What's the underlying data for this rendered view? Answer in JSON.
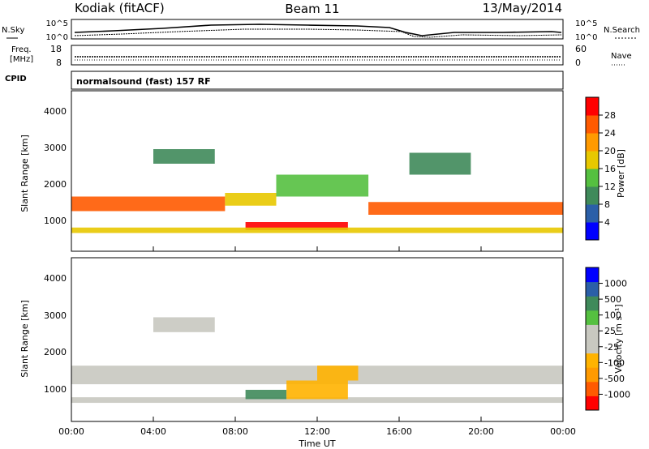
{
  "header": {
    "station": "Kodiak (fitACF)",
    "beam": "Beam 11",
    "date": "13/May/2014"
  },
  "noise_panel": {
    "left_label": "N.Sky",
    "right_label": "N.Search",
    "left_ticks": [
      "10^5",
      "10^0"
    ],
    "right_ticks": [
      "10^5",
      "10^0"
    ]
  },
  "freq_panel": {
    "left_label_1": "Freq.",
    "left_label_2": "[MHz]",
    "left_ticks": [
      "18",
      "8"
    ],
    "right_label": "Nave",
    "right_ticks": [
      "60",
      "0"
    ]
  },
  "cpid": {
    "label": "CPID",
    "value": "normalsound (fast) 157 RF"
  },
  "colors": {
    "power": [
      "#0000ff",
      "#2b5fa8",
      "#3f8a5a",
      "#55c040",
      "#e8c800",
      "#ff9a00",
      "#ff5a00",
      "#ff0000"
    ],
    "velocity": [
      "#ff0000",
      "#ff5a00",
      "#ff9a00",
      "#ffb300",
      "#c8c8c0",
      "#c8c8c0",
      "#55c040",
      "#3f8a5a",
      "#2b5fa8",
      "#0000ff"
    ]
  },
  "chart_data": [
    {
      "type": "heatmap",
      "name": "power",
      "ylabel": "Slant Range [km]",
      "yticks": [
        "1000",
        "2000",
        "3000",
        "4000"
      ],
      "ylim": [
        200,
        4600
      ],
      "xlim": [
        "00:00",
        "24:00"
      ],
      "colorbar_label": "Power [dB]",
      "colorbar_ticks": [
        "28",
        "24",
        "20",
        "16",
        "12",
        "8",
        "4"
      ],
      "bands": [
        {
          "t0": 0.0,
          "t1": 7.5,
          "r0": 1300,
          "r1": 1700,
          "v": 24
        },
        {
          "t0": 7.5,
          "t1": 10.0,
          "r0": 1450,
          "r1": 1800,
          "v": 18
        },
        {
          "t0": 10.0,
          "t1": 14.5,
          "r0": 1700,
          "r1": 2300,
          "v": 12
        },
        {
          "t0": 14.5,
          "t1": 24.0,
          "r0": 1200,
          "r1": 1550,
          "v": 26
        },
        {
          "t0": 8.5,
          "t1": 13.5,
          "r0": 780,
          "r1": 1000,
          "v": 28
        },
        {
          "t0": 0.0,
          "t1": 24.0,
          "r0": 700,
          "r1": 850,
          "v": 18
        },
        {
          "t0": 4.0,
          "t1": 7.0,
          "r0": 2600,
          "r1": 3000,
          "v": 10
        },
        {
          "t0": 16.5,
          "t1": 19.5,
          "r0": 2300,
          "r1": 2900,
          "v": 8
        }
      ]
    },
    {
      "type": "heatmap",
      "name": "velocity",
      "ylabel": "Slant Range [km]",
      "yticks": [
        "1000",
        "2000",
        "3000",
        "4000"
      ],
      "ylim": [
        200,
        4600
      ],
      "xlabel": "Time UT",
      "xticks": [
        "00:00",
        "04:00",
        "08:00",
        "12:00",
        "16:00",
        "20:00",
        "00:00"
      ],
      "colorbar_label": "Velocity [m s⁻¹]",
      "colorbar_ticks": [
        "1000",
        "500",
        "100",
        "25",
        "-25",
        "-100",
        "-500",
        "-1000"
      ],
      "bands": [
        {
          "t0": 0.0,
          "t1": 24.0,
          "r0": 1200,
          "r1": 1700,
          "v": 0
        },
        {
          "t0": 0.0,
          "t1": 24.0,
          "r0": 700,
          "r1": 850,
          "v": 0
        },
        {
          "t0": 8.5,
          "t1": 10.5,
          "r0": 800,
          "r1": 1050,
          "v": 150
        },
        {
          "t0": 10.5,
          "t1": 13.5,
          "r0": 800,
          "r1": 1300,
          "v": -150
        },
        {
          "t0": 12.0,
          "t1": 14.0,
          "r0": 1300,
          "r1": 1700,
          "v": -300
        },
        {
          "t0": 4.0,
          "t1": 7.0,
          "r0": 2600,
          "r1": 3000,
          "v": -50
        }
      ]
    }
  ]
}
